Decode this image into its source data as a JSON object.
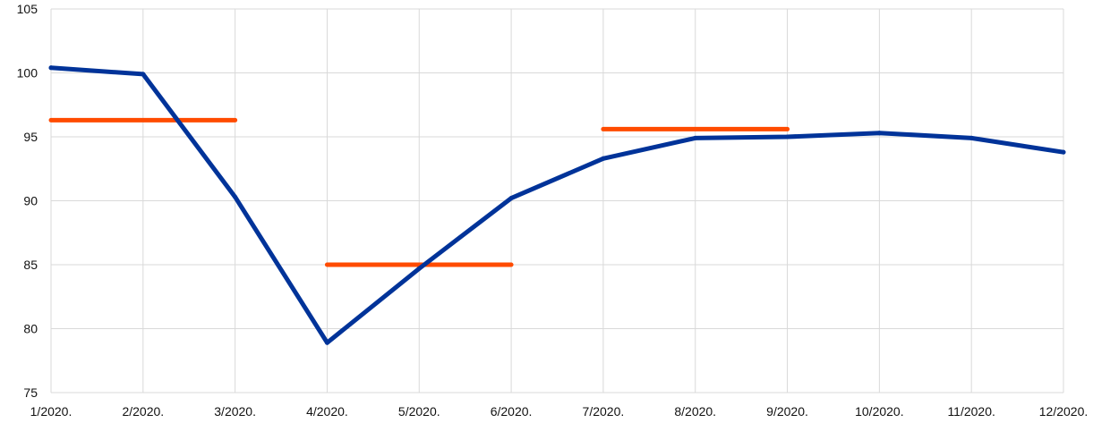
{
  "chart_data": {
    "type": "line",
    "title": "",
    "xlabel": "",
    "ylabel": "",
    "categories": [
      "1/2020.",
      "2/2020.",
      "3/2020.",
      "4/2020.",
      "5/2020.",
      "6/2020.",
      "7/2020.",
      "8/2020.",
      "9/2020.",
      "10/2020.",
      "11/2020.",
      "12/2020."
    ],
    "ylim": [
      75,
      105
    ],
    "yticks": [
      "75",
      "80",
      "85",
      "90",
      "95",
      "100",
      "105"
    ],
    "grid": true,
    "legend": "none",
    "series": [
      {
        "color": "#003399",
        "values": [
          100.4,
          99.9,
          90.3,
          78.9,
          84.7,
          90.2,
          93.3,
          94.9,
          95.0,
          95.3,
          94.9,
          93.8
        ]
      }
    ],
    "segments": [
      {
        "from": "1/2020.",
        "to": "3/2020.",
        "value": 96.3,
        "color": "#ff4b00"
      },
      {
        "from": "4/2020.",
        "to": "6/2020.",
        "value": 85.0,
        "color": "#ff4b00"
      },
      {
        "from": "7/2020.",
        "to": "9/2020.",
        "value": 95.6,
        "color": "#ff4b00"
      }
    ]
  }
}
